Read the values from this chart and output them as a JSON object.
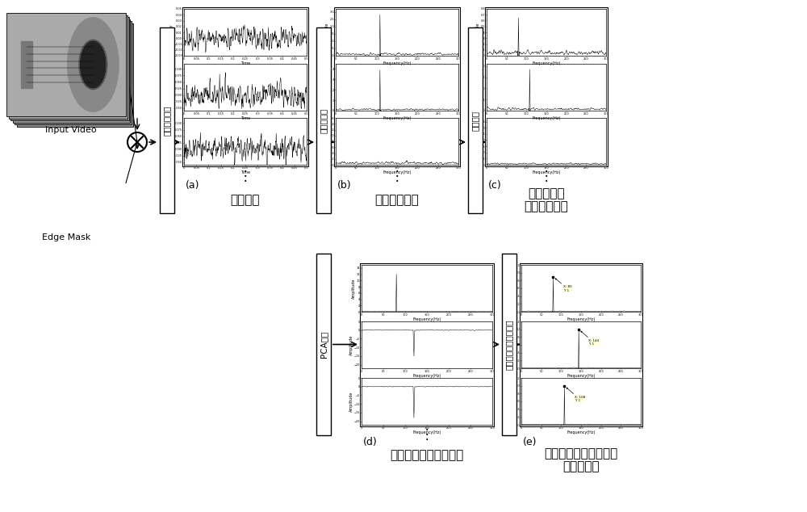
{
  "bg_color": "#ffffff",
  "input_video_label": "Input Video",
  "edge_mask_label": "Edge Mask",
  "label_a": "(a)",
  "label_b": "(b)",
  "label_c": "(c)",
  "label_d": "(d)",
  "label_e": "(e)",
  "text_a": "振动信号",
  "text_b": "信号的功率谱",
  "text_c1": "干扰抑制后",
  "text_c2": "信号的功率谱",
  "text_d": "一组互补相关的主成分",
  "text_e1": "三个主成分的回归频谱",
  "text_e2": "（归一化）",
  "arrow_a": "振动信号提取",
  "arrow_b": "傅里叶变换",
  "arrow_c": "干扰抑制",
  "arrow_d": "PCA分解",
  "arrow_e": "主成分选择与频率检测"
}
